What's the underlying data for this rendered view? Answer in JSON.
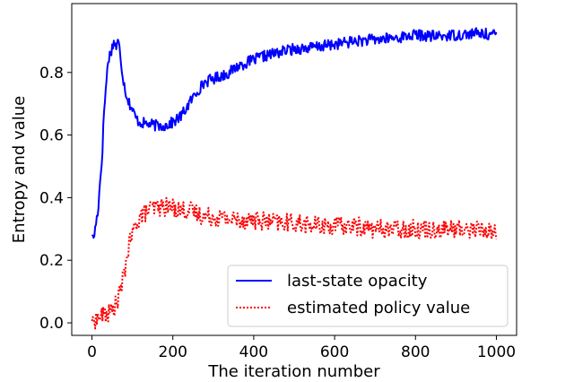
{
  "chart_data": {
    "type": "line",
    "title": "",
    "xlabel": "The iteration number",
    "ylabel": "Entropy and value",
    "xlim": [
      -50,
      1050
    ],
    "ylim": [
      -0.04,
      1.02
    ],
    "xticks": [
      0,
      200,
      400,
      600,
      800,
      1000
    ],
    "yticks": [
      0.0,
      0.2,
      0.4,
      0.6,
      0.8
    ],
    "xtick_labels": [
      "0",
      "200",
      "400",
      "600",
      "800",
      "1000"
    ],
    "ytick_labels": [
      "0.0",
      "0.2",
      "0.4",
      "0.6",
      "0.8"
    ],
    "grid": false,
    "legend_position": "lower-right",
    "series": [
      {
        "name": "last-state opacity",
        "color": "#0000ff",
        "style": "solid",
        "noise": 0.018,
        "anchors": [
          [
            0,
            0.28
          ],
          [
            5,
            0.27
          ],
          [
            10,
            0.32
          ],
          [
            15,
            0.36
          ],
          [
            20,
            0.45
          ],
          [
            25,
            0.53
          ],
          [
            30,
            0.68
          ],
          [
            35,
            0.76
          ],
          [
            40,
            0.84
          ],
          [
            45,
            0.86
          ],
          [
            50,
            0.88
          ],
          [
            55,
            0.9
          ],
          [
            60,
            0.88
          ],
          [
            65,
            0.9
          ],
          [
            70,
            0.86
          ],
          [
            75,
            0.8
          ],
          [
            80,
            0.76
          ],
          [
            85,
            0.73
          ],
          [
            90,
            0.71
          ],
          [
            100,
            0.68
          ],
          [
            110,
            0.65
          ],
          [
            120,
            0.64
          ],
          [
            140,
            0.635
          ],
          [
            160,
            0.63
          ],
          [
            180,
            0.63
          ],
          [
            200,
            0.64
          ],
          [
            220,
            0.66
          ],
          [
            240,
            0.7
          ],
          [
            260,
            0.74
          ],
          [
            280,
            0.77
          ],
          [
            300,
            0.78
          ],
          [
            320,
            0.79
          ],
          [
            340,
            0.8
          ],
          [
            360,
            0.82
          ],
          [
            380,
            0.83
          ],
          [
            400,
            0.84
          ],
          [
            420,
            0.85
          ],
          [
            450,
            0.86
          ],
          [
            480,
            0.87
          ],
          [
            500,
            0.875
          ],
          [
            550,
            0.88
          ],
          [
            600,
            0.89
          ],
          [
            650,
            0.9
          ],
          [
            700,
            0.905
          ],
          [
            750,
            0.91
          ],
          [
            800,
            0.92
          ],
          [
            850,
            0.915
          ],
          [
            900,
            0.92
          ],
          [
            950,
            0.925
          ],
          [
            1000,
            0.92
          ]
        ]
      },
      {
        "name": "estimated policy value",
        "color": "#ff0000",
        "style": "dotted",
        "noise": 0.03,
        "anchors": [
          [
            0,
            0.01
          ],
          [
            10,
            0.01
          ],
          [
            20,
            0.02
          ],
          [
            30,
            0.025
          ],
          [
            40,
            0.03
          ],
          [
            50,
            0.04
          ],
          [
            60,
            0.06
          ],
          [
            70,
            0.1
          ],
          [
            80,
            0.16
          ],
          [
            90,
            0.24
          ],
          [
            100,
            0.28
          ],
          [
            110,
            0.32
          ],
          [
            120,
            0.34
          ],
          [
            140,
            0.36
          ],
          [
            160,
            0.37
          ],
          [
            180,
            0.37
          ],
          [
            200,
            0.37
          ],
          [
            220,
            0.36
          ],
          [
            240,
            0.36
          ],
          [
            260,
            0.35
          ],
          [
            280,
            0.34
          ],
          [
            300,
            0.34
          ],
          [
            350,
            0.33
          ],
          [
            400,
            0.33
          ],
          [
            450,
            0.32
          ],
          [
            500,
            0.32
          ],
          [
            550,
            0.31
          ],
          [
            600,
            0.31
          ],
          [
            650,
            0.31
          ],
          [
            700,
            0.3
          ],
          [
            750,
            0.3
          ],
          [
            800,
            0.3
          ],
          [
            850,
            0.3
          ],
          [
            900,
            0.3
          ],
          [
            950,
            0.3
          ],
          [
            1000,
            0.29
          ]
        ]
      }
    ]
  }
}
